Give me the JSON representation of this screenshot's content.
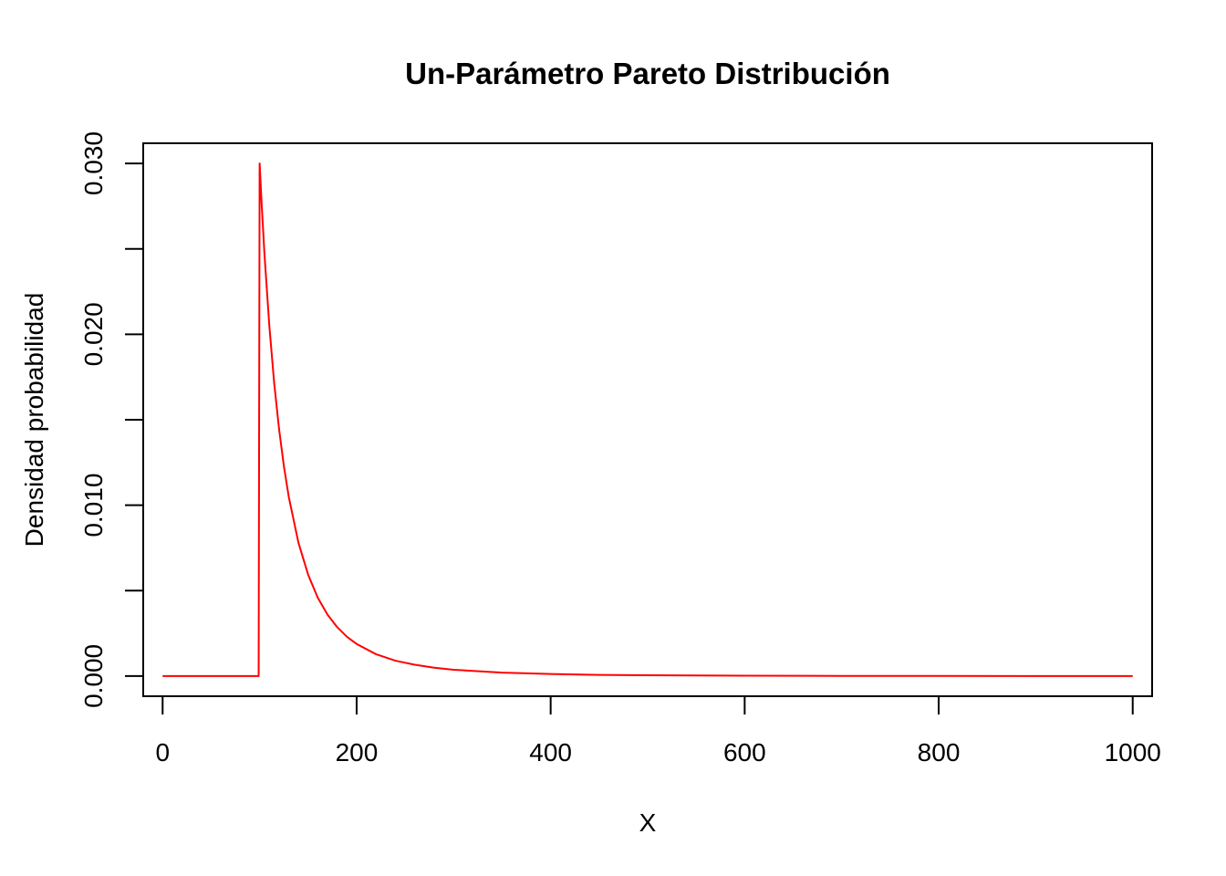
{
  "chart_data": {
    "type": "line",
    "title": "Un-Parámetro Pareto Distribución",
    "xlabel": "X",
    "ylabel": "Densidad probabilidad",
    "xlim": [
      -20,
      1020
    ],
    "ylim": [
      -0.00118,
      0.03118
    ],
    "x_ticks": [
      0,
      200,
      400,
      600,
      800,
      1000
    ],
    "x_tick_labels": [
      "0",
      "200",
      "400",
      "600",
      "800",
      "1000"
    ],
    "y_ticks": [
      0,
      0.005,
      0.01,
      0.015,
      0.02,
      0.025,
      0.03
    ],
    "y_tick_labels": [
      "0.000",
      "",
      "0.010",
      "",
      "0.020",
      "",
      "0.030"
    ],
    "grid": false,
    "legend": "none",
    "series": [
      {
        "color": "#ff0000",
        "x": [
          0,
          99,
          100,
          102,
          105,
          110,
          115,
          120,
          125,
          130,
          140,
          150,
          160,
          170,
          180,
          190,
          200,
          220,
          240,
          260,
          280,
          300,
          350,
          400,
          450,
          500,
          600,
          700,
          800,
          900,
          1000
        ],
        "values": [
          0,
          0,
          0.03,
          0.02771,
          0.02468,
          0.02049,
          0.01715,
          0.01447,
          0.01229,
          0.0105,
          0.00781,
          0.00593,
          0.00458,
          0.00359,
          0.00286,
          0.0023,
          0.00188,
          0.00128,
          0.0009,
          0.00066,
          0.00049,
          0.00037,
          0.0002,
          0.00012,
          7e-05,
          5e-05,
          2e-05,
          1e-05,
          1e-05,
          0,
          0
        ]
      }
    ]
  }
}
